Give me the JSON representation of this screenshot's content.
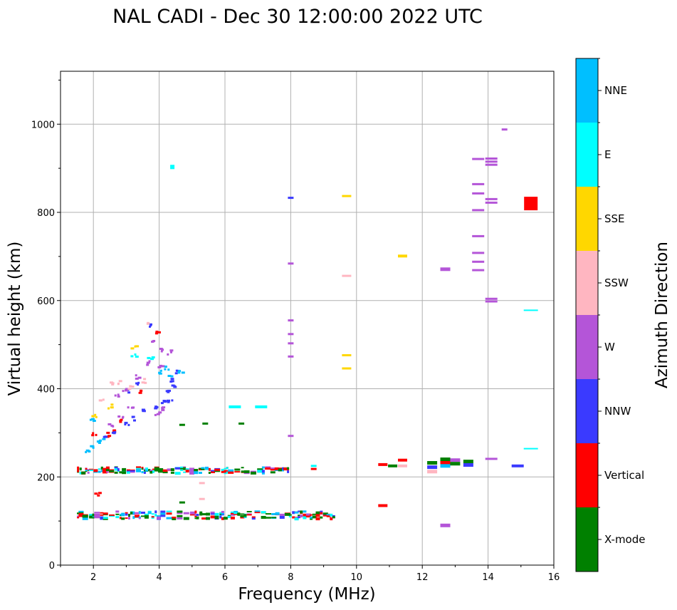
{
  "chart_data": {
    "type": "scatter",
    "title": "NAL CADI - Dec 30 12:00:00 2022 UTC",
    "xlabel": "Frequency (MHz)",
    "ylabel": "Virtual height (km)",
    "xlim": [
      1.0,
      16.0
    ],
    "ylim": [
      0,
      1120
    ],
    "xticks": [
      "2",
      "4",
      "6",
      "8",
      "10",
      "12",
      "14",
      "16"
    ],
    "yticks": [
      "0",
      "200",
      "400",
      "600",
      "800",
      "1000"
    ],
    "grid": true,
    "colorbar": {
      "label": "Azimuth Direction",
      "categories": [
        {
          "name": "X-mode",
          "color": "#008000"
        },
        {
          "name": "Vertical",
          "color": "#ff0000"
        },
        {
          "name": "NNW",
          "color": "#3a3aff"
        },
        {
          "name": "W",
          "color": "#b455d8"
        },
        {
          "name": "SSW",
          "color": "#ffb6c1"
        },
        {
          "name": "SSE",
          "color": "#ffd700"
        },
        {
          "name": "E",
          "color": "#00ffff"
        },
        {
          "name": "NNE",
          "color": "#00bfff"
        }
      ]
    },
    "points": [
      {
        "f": 4.4,
        "h": 903,
        "d": "E"
      },
      {
        "f": 15.3,
        "h": 820,
        "d": "Vertical"
      },
      {
        "f": 14.5,
        "h": 988,
        "d": "W"
      },
      {
        "f": 13.7,
        "h": 921,
        "d": "W"
      },
      {
        "f": 14.1,
        "h": 922,
        "d": "W"
      },
      {
        "f": 14.1,
        "h": 915,
        "d": "W"
      },
      {
        "f": 14.1,
        "h": 908,
        "d": "W"
      },
      {
        "f": 13.7,
        "h": 864,
        "d": "W"
      },
      {
        "f": 13.7,
        "h": 843,
        "d": "W"
      },
      {
        "f": 14.1,
        "h": 830,
        "d": "W"
      },
      {
        "f": 14.1,
        "h": 822,
        "d": "W"
      },
      {
        "f": 13.7,
        "h": 805,
        "d": "W"
      },
      {
        "f": 13.7,
        "h": 746,
        "d": "W"
      },
      {
        "f": 13.7,
        "h": 708,
        "d": "W"
      },
      {
        "f": 13.7,
        "h": 688,
        "d": "W"
      },
      {
        "f": 13.7,
        "h": 669,
        "d": "W"
      },
      {
        "f": 12.7,
        "h": 671,
        "d": "W"
      },
      {
        "f": 14.1,
        "h": 604,
        "d": "W"
      },
      {
        "f": 14.1,
        "h": 598,
        "d": "W"
      },
      {
        "f": 15.3,
        "h": 578,
        "d": "E"
      },
      {
        "f": 15.3,
        "h": 264,
        "d": "E"
      },
      {
        "f": 14.1,
        "h": 241,
        "d": "W"
      },
      {
        "f": 14.9,
        "h": 225,
        "d": "NNW"
      },
      {
        "f": 8.0,
        "h": 833,
        "d": "NNW"
      },
      {
        "f": 9.7,
        "h": 837,
        "d": "SSE"
      },
      {
        "f": 11.4,
        "h": 701,
        "d": "SSE"
      },
      {
        "f": 8.0,
        "h": 684,
        "d": "W"
      },
      {
        "f": 9.7,
        "h": 656,
        "d": "SSW"
      },
      {
        "f": 8.0,
        "h": 555,
        "d": "W"
      },
      {
        "f": 8.0,
        "h": 524,
        "d": "W"
      },
      {
        "f": 8.0,
        "h": 503,
        "d": "W"
      },
      {
        "f": 8.0,
        "h": 473,
        "d": "W"
      },
      {
        "f": 9.7,
        "h": 476,
        "d": "SSE"
      },
      {
        "f": 9.7,
        "h": 446,
        "d": "SSE"
      },
      {
        "f": 8.0,
        "h": 293,
        "d": "W"
      },
      {
        "f": 6.3,
        "h": 359,
        "d": "E"
      },
      {
        "f": 7.1,
        "h": 359,
        "d": "E"
      },
      {
        "f": 4.7,
        "h": 318,
        "d": "X-mode"
      },
      {
        "f": 5.4,
        "h": 321,
        "d": "X-mode"
      },
      {
        "f": 6.5,
        "h": 321,
        "d": "X-mode"
      },
      {
        "f": 8.7,
        "h": 218,
        "d": "Vertical"
      },
      {
        "f": 8.7,
        "h": 225,
        "d": "E"
      },
      {
        "f": 10.8,
        "h": 228,
        "d": "Vertical"
      },
      {
        "f": 11.1,
        "h": 225,
        "d": "X-mode"
      },
      {
        "f": 11.4,
        "h": 238,
        "d": "Vertical"
      },
      {
        "f": 11.4,
        "h": 225,
        "d": "SSW"
      },
      {
        "f": 12.3,
        "h": 232,
        "d": "X-mode"
      },
      {
        "f": 12.3,
        "h": 222,
        "d": "NNW"
      },
      {
        "f": 12.3,
        "h": 212,
        "d": "SSW"
      },
      {
        "f": 12.7,
        "h": 240,
        "d": "X-mode"
      },
      {
        "f": 12.7,
        "h": 232,
        "d": "Vertical"
      },
      {
        "f": 12.7,
        "h": 225,
        "d": "NNE"
      },
      {
        "f": 13.0,
        "h": 238,
        "d": "W"
      },
      {
        "f": 13.0,
        "h": 230,
        "d": "X-mode"
      },
      {
        "f": 13.4,
        "h": 235,
        "d": "X-mode"
      },
      {
        "f": 13.4,
        "h": 227,
        "d": "NNW"
      },
      {
        "f": 10.8,
        "h": 135,
        "d": "Vertical"
      },
      {
        "f": 12.7,
        "h": 90,
        "d": "W"
      },
      {
        "f": 5.3,
        "h": 186,
        "d": "SSW"
      },
      {
        "f": 5.3,
        "h": 150,
        "d": "SSW"
      },
      {
        "f": 4.7,
        "h": 142,
        "d": "X-mode"
      }
    ],
    "traces": [
      {
        "d": "NNE",
        "pts": [
          [
            1.8,
            262
          ],
          [
            1.95,
            270
          ],
          [
            2.1,
            280
          ],
          [
            2.2,
            287
          ],
          [
            1.9,
            330
          ]
        ]
      },
      {
        "d": "SSE",
        "pts": [
          [
            2.0,
            342
          ],
          [
            2.5,
            362
          ],
          [
            3.2,
            498
          ]
        ]
      },
      {
        "d": "Vertical",
        "pts": [
          [
            2.0,
            300
          ],
          [
            2.4,
            298
          ],
          [
            2.6,
            308
          ],
          [
            2.8,
            330
          ],
          [
            3.4,
            397
          ],
          [
            3.9,
            530
          ],
          [
            2.1,
            165
          ]
        ]
      },
      {
        "d": "NNW",
        "pts": [
          [
            2.3,
            290
          ],
          [
            2.6,
            300
          ],
          [
            3.0,
            320
          ],
          [
            3.2,
            335
          ],
          [
            3.5,
            350
          ],
          [
            3.9,
            360
          ],
          [
            4.1,
            370
          ],
          [
            4.3,
            375
          ],
          [
            4.2,
            395
          ],
          [
            4.4,
            405
          ],
          [
            4.3,
            420
          ],
          [
            3.3,
            415
          ],
          [
            3.0,
            395
          ],
          [
            3.7,
            548
          ],
          [
            4.5,
            440
          ]
        ]
      },
      {
        "d": "W",
        "pts": [
          [
            2.5,
            320
          ],
          [
            2.8,
            340
          ],
          [
            3.1,
            360
          ],
          [
            2.7,
            385
          ],
          [
            2.9,
            402
          ],
          [
            3.3,
            430
          ],
          [
            3.6,
            460
          ],
          [
            4.0,
            455
          ],
          [
            4.3,
            485
          ],
          [
            3.8,
            508
          ],
          [
            4.0,
            490
          ],
          [
            3.9,
            345
          ],
          [
            4.1,
            358
          ]
        ]
      },
      {
        "d": "SSW",
        "pts": [
          [
            2.2,
            380
          ],
          [
            2.5,
            414
          ],
          [
            2.8,
            418
          ],
          [
            3.1,
            405
          ],
          [
            3.5,
            420
          ],
          [
            3.6,
            552
          ]
        ]
      },
      {
        "d": "NNE",
        "pts": [
          [
            4.0,
            440
          ],
          [
            4.2,
            450
          ],
          [
            4.3,
            428
          ],
          [
            4.6,
            443
          ]
        ]
      },
      {
        "d": "E",
        "pts": [
          [
            3.2,
            480
          ],
          [
            3.7,
            470
          ]
        ]
      }
    ],
    "bands": [
      {
        "f0": 1.5,
        "f1": 7.9,
        "h0": 208,
        "h1": 224
      },
      {
        "f0": 1.5,
        "f1": 9.3,
        "h0": 104,
        "h1": 124
      }
    ]
  }
}
